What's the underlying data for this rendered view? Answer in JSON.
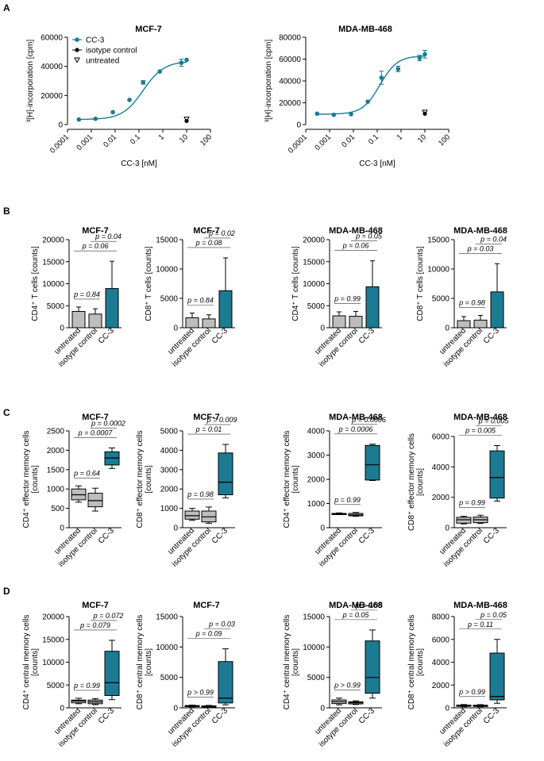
{
  "colors": {
    "teal": "#1b7b93",
    "grey": "#bdbdbd",
    "black": "#000000",
    "white": "#ffffff"
  },
  "panels": [
    "A",
    "B",
    "C",
    "D"
  ],
  "chart_data": [
    {
      "id": "A1",
      "type": "scatter",
      "title": "MCF-7",
      "xlabel": "CC-3 [nM]",
      "ylabel": "³[H]-incorporation [cpm]",
      "yticks": [
        "0",
        "20000",
        "40000",
        "60000"
      ],
      "ylim": [
        0,
        60000
      ],
      "xscale": "log",
      "xlim": [
        0.0001,
        100
      ],
      "xticks": [
        "0.0001",
        "0.001",
        "0.01",
        "0.1",
        "1",
        "10",
        "100"
      ],
      "legend": [
        "CC-3",
        "isotype control",
        "untreated"
      ],
      "series": [
        {
          "name": "CC-3",
          "x": [
            0.0003,
            0.0015,
            0.008,
            0.04,
            0.15,
            0.75,
            6,
            10
          ],
          "y": [
            3500,
            4000,
            8500,
            17000,
            29000,
            36500,
            42500,
            44500
          ],
          "err": [
            0,
            0,
            0,
            0,
            1200,
            0,
            2500,
            0
          ]
        },
        {
          "name": "isotype control",
          "x": [
            10
          ],
          "y": [
            2500
          ]
        },
        {
          "name": "untreated",
          "x": [
            10
          ],
          "y": [
            3500
          ]
        }
      ],
      "fit": {
        "bottom": 3500,
        "top": 43500,
        "ec50": 0.15,
        "hill": 1
      }
    },
    {
      "id": "A2",
      "type": "scatter",
      "title": "MDA-MB-468",
      "xlabel": "CC-3 [nM]",
      "ylabel": "³[H]-incorporation [cpm]",
      "yticks": [
        "0",
        "20000",
        "40000",
        "60000",
        "80000"
      ],
      "ylim": [
        0,
        80000
      ],
      "xscale": "log",
      "xlim": [
        0.0001,
        100
      ],
      "xticks": [
        "0.0001",
        "0.001",
        "0.01",
        "0.1",
        "1",
        "10",
        "100"
      ],
      "series": [
        {
          "name": "CC-3",
          "x": [
            0.0003,
            0.0015,
            0.008,
            0.04,
            0.15,
            0.75,
            6,
            10
          ],
          "y": [
            10000,
            9000,
            9500,
            21000,
            43000,
            51000,
            61000,
            64500
          ],
          "err": [
            0,
            0,
            0,
            0,
            6000,
            2500,
            2500,
            3500
          ]
        },
        {
          "name": "isotype control",
          "x": [
            10
          ],
          "y": [
            10000
          ]
        },
        {
          "name": "untreated",
          "x": [
            10
          ],
          "y": [
            11000
          ]
        }
      ],
      "fit": {
        "bottom": 9500,
        "top": 63000,
        "ec50": 0.13,
        "hill": 1.2
      }
    },
    {
      "id": "B1",
      "type": "bar",
      "title": "MCF-7",
      "ylabel": [
        "CD4⁺ T cells [counts]"
      ],
      "ylim": [
        0,
        20000
      ],
      "yticks": [
        "0",
        "5000",
        "10000",
        "15000",
        "20000"
      ],
      "categories": [
        "untreated",
        "isotype control",
        "CC-3"
      ],
      "values": [
        3700,
        3100,
        8900
      ],
      "err": [
        1000,
        1200,
        6200
      ],
      "pvals": [
        {
          "a": 0,
          "b": 1,
          "text": "p = 0.84"
        },
        {
          "a": 0,
          "b": 2,
          "text": "p = 0.06"
        },
        {
          "a": 1,
          "b": 2,
          "text": "p = 0.04"
        }
      ]
    },
    {
      "id": "B2",
      "type": "bar",
      "title": "MCF-7",
      "ylabel": [
        "CD8⁺ T cells [counts]"
      ],
      "ylim": [
        0,
        15000
      ],
      "yticks": [
        "0",
        "5000",
        "10000",
        "15000"
      ],
      "categories": [
        "untreated",
        "isotype control",
        "CC-3"
      ],
      "values": [
        1700,
        1500,
        6300
      ],
      "err": [
        800,
        700,
        5600
      ],
      "pvals": [
        {
          "a": 0,
          "b": 1,
          "text": "p = 0.84"
        },
        {
          "a": 0,
          "b": 2,
          "text": "p = 0.08"
        },
        {
          "a": 1,
          "b": 2,
          "text": "p = 0.02"
        }
      ]
    },
    {
      "id": "B3",
      "type": "bar",
      "title": "MDA-MB-468",
      "ylabel": [
        "CD4⁺ T cells [counts]"
      ],
      "ylim": [
        0,
        20000
      ],
      "yticks": [
        "0",
        "5000",
        "10000",
        "15000",
        "20000"
      ],
      "categories": [
        "untreated",
        "isotype control",
        "CC-3"
      ],
      "values": [
        2700,
        2600,
        9300
      ],
      "err": [
        900,
        1100,
        5900
      ],
      "pvals": [
        {
          "a": 0,
          "b": 1,
          "text": "p = 0.99"
        },
        {
          "a": 0,
          "b": 2,
          "text": "p = 0.06"
        },
        {
          "a": 1,
          "b": 2,
          "text": "p = 0.05"
        }
      ]
    },
    {
      "id": "B4",
      "type": "bar",
      "title": "MDA-MB-468",
      "ylabel": [
        "CD8⁺ T cells [counts]"
      ],
      "ylim": [
        0,
        15000
      ],
      "yticks": [
        "0",
        "5000",
        "10000",
        "15000"
      ],
      "categories": [
        "untreated",
        "isotype control",
        "CC-3"
      ],
      "values": [
        1200,
        1300,
        6100
      ],
      "err": [
        700,
        800,
        4800
      ],
      "pvals": [
        {
          "a": 0,
          "b": 1,
          "text": "p = 0.98"
        },
        {
          "a": 0,
          "b": 2,
          "text": "p = 0.03"
        },
        {
          "a": 1,
          "b": 2,
          "text": "p = 0.04"
        }
      ]
    },
    {
      "id": "C1",
      "type": "boxplot",
      "title": "MCF-7",
      "ylabel": [
        "CD4⁺ effector memory cells",
        "[counts]"
      ],
      "ylim": [
        0,
        2500
      ],
      "yticks": [
        "0",
        "500",
        "1000",
        "1500",
        "2000",
        "2500"
      ],
      "categories": [
        "untreated",
        "isotype control",
        "CC-3"
      ],
      "boxes": [
        [
          660,
          720,
          850,
          1000,
          1080
        ],
        [
          430,
          540,
          700,
          890,
          1020
        ],
        [
          1530,
          1620,
          1800,
          1960,
          2060
        ]
      ],
      "pvals": [
        {
          "a": 0,
          "b": 1,
          "text": "p = 0.64"
        },
        {
          "a": 0,
          "b": 2,
          "text": "p = 0.0007"
        },
        {
          "a": 1,
          "b": 2,
          "text": "p = 0.0002"
        }
      ]
    },
    {
      "id": "C2",
      "type": "boxplot",
      "title": "MCF-7",
      "ylabel": [
        "CD8⁺ effector memory cells",
        "[counts]"
      ],
      "ylim": [
        0,
        5000
      ],
      "yticks": [
        "0",
        "1000",
        "2000",
        "3000",
        "4000",
        "5000"
      ],
      "categories": [
        "untreated",
        "isotype control",
        "CC-3"
      ],
      "boxes": [
        [
          380,
          440,
          620,
          860,
          1000
        ],
        [
          230,
          300,
          560,
          860,
          1070
        ],
        [
          1540,
          1700,
          2350,
          3860,
          4300
        ]
      ],
      "pvals": [
        {
          "a": 0,
          "b": 1,
          "text": "p = 0.98"
        },
        {
          "a": 0,
          "b": 2,
          "text": "p = 0.01"
        },
        {
          "a": 1,
          "b": 2,
          "text": "p = 0.009"
        }
      ]
    },
    {
      "id": "C3",
      "type": "boxplot",
      "title": "MDA-MB-468",
      "ylabel": [
        "CD4⁺ effector memory cells",
        "[counts]"
      ],
      "ylim": [
        0,
        4000
      ],
      "yticks": [
        "0",
        "1000",
        "2000",
        "3000",
        "4000"
      ],
      "categories": [
        "untreated",
        "isotype control",
        "CC-3"
      ],
      "boxes": [
        [
          540,
          550,
          570,
          590,
          610
        ],
        [
          470,
          490,
          530,
          590,
          630
        ],
        [
          1950,
          1970,
          2600,
          3400,
          3450
        ]
      ],
      "pvals": [
        {
          "a": 0,
          "b": 1,
          "text": "p = 0.99"
        },
        {
          "a": 0,
          "b": 2,
          "text": "p = 0.0006"
        },
        {
          "a": 1,
          "b": 2,
          "text": "p = 0.0006"
        }
      ]
    },
    {
      "id": "C4",
      "type": "boxplot",
      "title": "MDA-MB-468",
      "ylabel": [
        "CD8⁺ effector memory cells",
        "[counts]"
      ],
      "ylim": [
        0,
        6000
      ],
      "yticks": [
        "0",
        "2000",
        "4000",
        "6000"
      ],
      "categories": [
        "untreated",
        "isotype control",
        "CC-3"
      ],
      "boxes": [
        [
          250,
          300,
          520,
          680,
          750
        ],
        [
          280,
          330,
          520,
          700,
          820
        ],
        [
          1750,
          1950,
          3300,
          5050,
          5400
        ]
      ],
      "pvals": [
        {
          "a": 0,
          "b": 1,
          "text": "p = 0.99"
        },
        {
          "a": 0,
          "b": 2,
          "text": "p = 0.005"
        },
        {
          "a": 1,
          "b": 2,
          "text": "p = 0.005"
        }
      ]
    },
    {
      "id": "D1",
      "type": "boxplot",
      "title": "MCF-7",
      "ylabel": [
        "CD4⁺ central memory cells",
        "[counts]"
      ],
      "ylim": [
        0,
        20000
      ],
      "yticks": [
        "0",
        "5000",
        "10000",
        "15000",
        "20000"
      ],
      "categories": [
        "untreated",
        "isotype control",
        "CC-3"
      ],
      "boxes": [
        [
          900,
          1100,
          1500,
          1700,
          2100
        ],
        [
          700,
          900,
          1300,
          1700,
          2000
        ],
        [
          1800,
          2700,
          5500,
          12400,
          14800
        ]
      ],
      "pvals": [
        {
          "a": 0,
          "b": 1,
          "text": "p = 0.99"
        },
        {
          "a": 0,
          "b": 2,
          "text": "p = 0.079"
        },
        {
          "a": 1,
          "b": 2,
          "text": "p = 0.072"
        }
      ]
    },
    {
      "id": "D2",
      "type": "boxplot",
      "title": "MCF-7",
      "ylabel": [
        "CD8⁺ central memory cells",
        "[counts]"
      ],
      "ylim": [
        0,
        15000
      ],
      "yticks": [
        "0",
        "5000",
        "10000",
        "15000"
      ],
      "categories": [
        "untreated",
        "isotype control",
        "CC-3"
      ],
      "boxes": [
        [
          150,
          200,
          300,
          380,
          450
        ],
        [
          100,
          150,
          250,
          320,
          400
        ],
        [
          500,
          800,
          1600,
          7600,
          9700
        ]
      ],
      "pvals": [
        {
          "a": 0,
          "b": 1,
          "text": "p > 0.99"
        },
        {
          "a": 0,
          "b": 2,
          "text": "p = 0.09"
        },
        {
          "a": 1,
          "b": 2,
          "text": "p = 0.03"
        }
      ]
    },
    {
      "id": "D3",
      "type": "boxplot",
      "title": "MDA-MB-468",
      "ylabel": [
        "CD4⁺ central memory cells",
        "[counts]"
      ],
      "ylim": [
        0,
        15000
      ],
      "yticks": [
        "0",
        "5000",
        "10000",
        "15000"
      ],
      "categories": [
        "untreated",
        "isotype control",
        "CC-3"
      ],
      "boxes": [
        [
          500,
          700,
          1000,
          1300,
          1600
        ],
        [
          550,
          650,
          850,
          1000,
          1150
        ],
        [
          1600,
          2400,
          5000,
          11000,
          12800
        ]
      ],
      "pvals": [
        {
          "a": 0,
          "b": 1,
          "text": "p > 0.99"
        },
        {
          "a": 0,
          "b": 2,
          "text": "p = 0.05"
        },
        {
          "a": 1,
          "b": 2,
          "text": "p = 0.05"
        }
      ]
    },
    {
      "id": "D4",
      "type": "boxplot",
      "title": "MDA-MB-468",
      "ylabel": [
        "CD8⁺ central memory cells",
        "[counts]"
      ],
      "ylim": [
        0,
        8000
      ],
      "yticks": [
        "0",
        "2000",
        "4000",
        "6000",
        "8000"
      ],
      "categories": [
        "untreated",
        "isotype control",
        "CC-3"
      ],
      "boxes": [
        [
          90,
          130,
          190,
          240,
          290
        ],
        [
          90,
          120,
          170,
          230,
          280
        ],
        [
          400,
          700,
          1000,
          4800,
          6000
        ]
      ],
      "pvals": [
        {
          "a": 0,
          "b": 1,
          "text": "p > 0.99"
        },
        {
          "a": 0,
          "b": 2,
          "text": "p = 0.11"
        },
        {
          "a": 1,
          "b": 2,
          "text": "p = 0.05"
        }
      ]
    }
  ]
}
